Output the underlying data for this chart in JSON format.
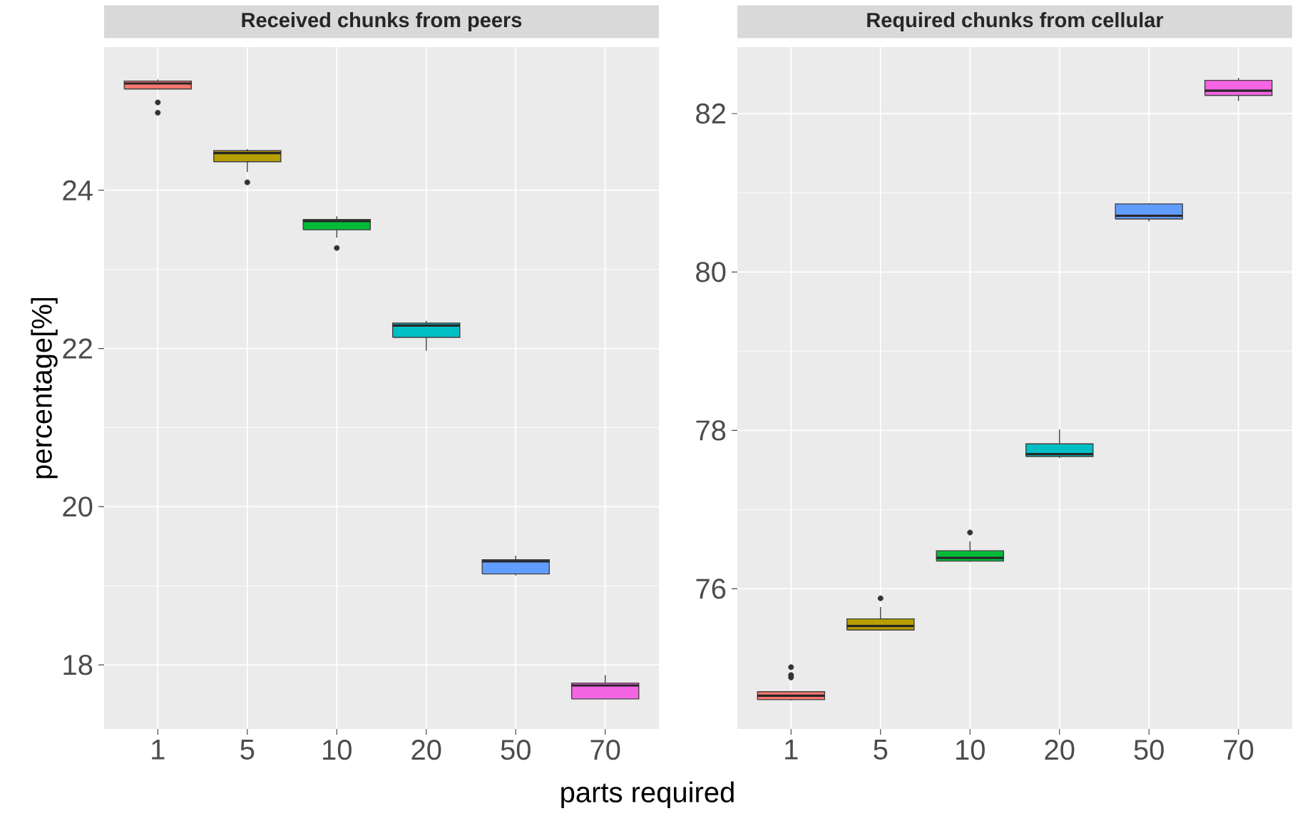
{
  "chart_data": [
    {
      "type": "box",
      "title": "Received chunks from peers",
      "ylabel": "percentage[%]",
      "xlabel": "parts required",
      "categories": [
        "1",
        "5",
        "10",
        "20",
        "50",
        "70"
      ],
      "colors": [
        "#f8766d",
        "#b79f00",
        "#00ba38",
        "#00bfc4",
        "#619cff",
        "#f564e3"
      ],
      "boxes": [
        {
          "low": 25.28,
          "q1": 25.28,
          "median": 25.35,
          "q3": 25.38,
          "high": 25.4,
          "outliers": [
            25.11,
            24.98
          ]
        },
        {
          "low": 24.23,
          "q1": 24.36,
          "median": 24.47,
          "q3": 24.5,
          "high": 24.52,
          "outliers": [
            24.1
          ]
        },
        {
          "low": 23.4,
          "q1": 23.5,
          "median": 23.61,
          "q3": 23.63,
          "high": 23.67,
          "outliers": [
            23.27
          ]
        },
        {
          "low": 21.97,
          "q1": 22.14,
          "median": 22.29,
          "q3": 22.32,
          "high": 22.35
        },
        {
          "low": 19.13,
          "q1": 19.15,
          "median": 19.31,
          "q3": 19.33,
          "high": 19.38
        },
        {
          "low": 17.57,
          "q1": 17.57,
          "median": 17.74,
          "q3": 17.77,
          "high": 17.87
        }
      ],
      "ylim": [
        17.19,
        25.81
      ],
      "yticks": [
        18,
        20,
        22,
        24
      ],
      "grid": true
    },
    {
      "type": "box",
      "title": "Required chunks from cellular",
      "categories": [
        "1",
        "5",
        "10",
        "20",
        "50",
        "70"
      ],
      "colors": [
        "#f8766d",
        "#b79f00",
        "#00ba38",
        "#00bfc4",
        "#619cff",
        "#f564e3"
      ],
      "boxes": [
        {
          "low": 74.59,
          "q1": 74.6,
          "median": 74.65,
          "q3": 74.7,
          "high": 74.71,
          "outliers": [
            75.01,
            74.91,
            74.88
          ]
        },
        {
          "low": 75.47,
          "q1": 75.48,
          "median": 75.53,
          "q3": 75.62,
          "high": 75.77,
          "outliers": [
            75.88
          ]
        },
        {
          "low": 76.34,
          "q1": 76.35,
          "median": 76.39,
          "q3": 76.48,
          "high": 76.6,
          "outliers": [
            76.71
          ]
        },
        {
          "low": 77.65,
          "q1": 77.67,
          "median": 77.7,
          "q3": 77.83,
          "high": 78.01
        },
        {
          "low": 80.64,
          "q1": 80.67,
          "median": 80.71,
          "q3": 80.86,
          "high": 80.87
        },
        {
          "low": 82.16,
          "q1": 82.23,
          "median": 82.29,
          "q3": 82.42,
          "high": 82.45
        }
      ],
      "ylim": [
        74.23,
        82.84
      ],
      "yticks": [
        76,
        78,
        80,
        82
      ],
      "grid": true
    }
  ]
}
